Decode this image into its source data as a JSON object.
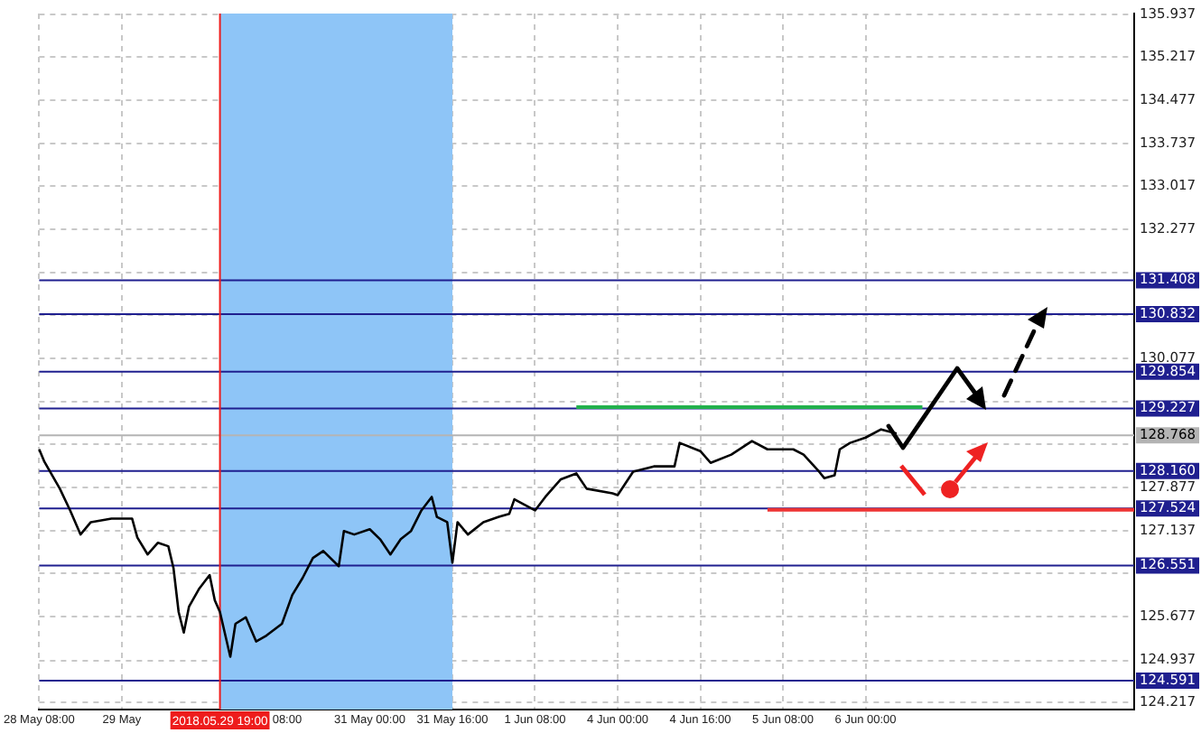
{
  "chart_data": {
    "type": "line",
    "categories": [
      "28 May 08:00",
      null,
      null,
      null,
      null,
      null,
      null,
      null,
      null,
      null,
      null,
      null,
      null,
      null,
      null,
      null,
      "29 May",
      null,
      null,
      null,
      null,
      null,
      null,
      null,
      null,
      null,
      null,
      null,
      null,
      null,
      null,
      null,
      null,
      null,
      null,
      "2018.05.29 19:00",
      null,
      null,
      null,
      null,
      null,
      null,
      null,
      null,
      null,
      null,
      null,
      null,
      "08:00",
      null,
      null,
      null,
      null,
      null,
      null,
      null,
      null,
      null,
      null,
      null,
      null,
      null,
      null,
      null,
      "31 May 00:00",
      null,
      null,
      null,
      null,
      null,
      null,
      null,
      null,
      null,
      null,
      null,
      null,
      null,
      null,
      null,
      "31 May 16:00",
      null,
      null,
      null,
      null,
      null,
      null,
      null,
      null,
      null,
      null,
      null,
      null,
      null,
      null,
      null,
      "1 Jun 08:00",
      null,
      null,
      null,
      null,
      null,
      null,
      null,
      null,
      null,
      null,
      null,
      null,
      null,
      null,
      null,
      "4 Jun 00:00",
      null,
      null,
      null,
      null,
      null,
      null,
      null,
      null,
      null,
      null,
      null,
      null,
      null,
      null,
      null,
      "4 Jun 16:00",
      null,
      null,
      null,
      null,
      null,
      null,
      null,
      null,
      null,
      null,
      null,
      null,
      null,
      null,
      null,
      "5 Jun 08:00",
      null,
      null,
      null,
      null,
      null,
      null,
      null,
      null,
      null,
      null,
      null,
      null,
      null,
      null,
      null,
      "6 Jun 00:00",
      null,
      null,
      null,
      null,
      null,
      null,
      null,
      null,
      null,
      null,
      null,
      null,
      null,
      null,
      null,
      null,
      null,
      null,
      null,
      null,
      null,
      null,
      null,
      null,
      null,
      null,
      null,
      null,
      null,
      null,
      null,
      null,
      null,
      null,
      null,
      null,
      null,
      null,
      null,
      null,
      null,
      null,
      null,
      null,
      null,
      null,
      null,
      null,
      null,
      null,
      null,
      null
    ],
    "ylim": [
      124.1,
      135.95
    ],
    "yticks": [
      124.217,
      124.937,
      125.677,
      {
        "value": 126.417,
        "label": null
      },
      127.137,
      127.877,
      {
        "value": 128.617,
        "label": null
      },
      {
        "value": 129.337,
        "label": null
      },
      130.077,
      {
        "value": 130.817,
        "label": null
      },
      {
        "value": 131.537,
        "label": null
      },
      132.277,
      133.017,
      133.737,
      134.477,
      135.217,
      135.937
    ],
    "grid": true,
    "legend": false,
    "marker": "none",
    "series": [
      {
        "color": "#000000",
        "values": [
          128.53,
          128.32,
          null,
          null,
          127.86,
          null,
          127.49,
          null,
          127.08,
          null,
          127.29,
          null,
          null,
          null,
          127.35,
          null,
          null,
          null,
          127.35,
          127.03,
          null,
          126.74,
          null,
          126.94,
          null,
          126.88,
          126.51,
          125.76,
          125.41,
          125.85,
          null,
          126.16,
          null,
          126.39,
          125.96,
          125.76,
          null,
          125.0,
          125.56,
          null,
          125.67,
          null,
          125.26,
          null,
          125.36,
          null,
          null,
          125.56,
          null,
          126.05,
          null,
          126.34,
          null,
          126.68,
          null,
          126.8,
          null,
          null,
          126.54,
          127.14,
          null,
          127.08,
          null,
          null,
          127.17,
          null,
          127.0,
          null,
          126.74,
          null,
          127.0,
          null,
          127.14,
          null,
          127.49,
          null,
          127.72,
          127.38,
          null,
          127.29,
          126.6,
          127.29,
          null,
          127.08,
          null,
          null,
          127.29,
          null,
          null,
          127.38,
          null,
          127.43,
          127.68,
          null,
          null,
          null,
          127.49,
          null,
          127.72,
          null,
          null,
          128.02,
          null,
          null,
          128.12,
          null,
          127.86,
          null,
          null,
          null,
          null,
          127.78,
          127.75,
          null,
          null,
          128.15,
          null,
          null,
          null,
          128.24,
          null,
          null,
          null,
          128.24,
          128.64,
          null,
          null,
          null,
          128.5,
          null,
          128.3,
          null,
          null,
          null,
          128.44,
          null,
          null,
          null,
          128.67,
          null,
          null,
          128.53,
          null,
          null,
          null,
          null,
          128.53,
          null,
          128.44,
          null,
          null,
          128.15,
          128.04,
          null,
          128.09,
          128.53,
          null,
          128.64,
          null,
          null,
          128.73,
          null,
          null,
          128.87,
          null,
          null,
          128.8,
          null,
          null,
          null,
          null,
          null,
          null,
          null,
          null,
          null,
          null,
          null,
          null,
          null,
          null,
          null,
          null,
          null,
          null,
          null,
          null,
          null,
          null,
          null,
          null,
          null,
          null,
          null,
          null,
          null,
          null,
          null,
          null,
          null,
          null,
          null,
          null,
          null,
          null,
          null,
          null,
          null,
          null,
          null,
          null,
          null,
          null
        ]
      },
      {
        "color": "#22b14c",
        "values": [
          null,
          null,
          null,
          null,
          null,
          null,
          null,
          null,
          null,
          null,
          null,
          null,
          null,
          null,
          null,
          null,
          null,
          null,
          null,
          null,
          null,
          null,
          null,
          null,
          null,
          null,
          null,
          null,
          null,
          null,
          null,
          null,
          null,
          null,
          null,
          null,
          null,
          null,
          null,
          null,
          null,
          null,
          null,
          null,
          null,
          null,
          null,
          null,
          null,
          null,
          null,
          null,
          null,
          null,
          null,
          null,
          null,
          null,
          null,
          null,
          null,
          null,
          null,
          null,
          null,
          null,
          null,
          null,
          null,
          null,
          null,
          null,
          null,
          null,
          null,
          null,
          null,
          null,
          null,
          null,
          null,
          null,
          null,
          null,
          null,
          null,
          null,
          null,
          null,
          null,
          null,
          null,
          null,
          null,
          null,
          null,
          null,
          null,
          null,
          null,
          null,
          null,
          null,
          null,
          129.25,
          null,
          null,
          null,
          null,
          null,
          null,
          null,
          null,
          null,
          null,
          null,
          null,
          null,
          null,
          null,
          null,
          null,
          null,
          null,
          null,
          null,
          null,
          null,
          null,
          null,
          null,
          null,
          null,
          null,
          null,
          null,
          null,
          null,
          null,
          null,
          null,
          null,
          null,
          null,
          null,
          null,
          null,
          null,
          null,
          null,
          null,
          null,
          null,
          null,
          null,
          null,
          null,
          null,
          null,
          null,
          null,
          null,
          null,
          null,
          null,
          null,
          null,
          null,
          null,
          null,
          null,
          129.25,
          null,
          null,
          null,
          null,
          null,
          null,
          null,
          null,
          null,
          null,
          null,
          null,
          null,
          null,
          null,
          null,
          null,
          null,
          null,
          null,
          null,
          null,
          null,
          null,
          null,
          null,
          null,
          null,
          null,
          null,
          null,
          null,
          null,
          null,
          null,
          null,
          null,
          null,
          null,
          null,
          null
        ]
      },
      {
        "color": "#ee3333",
        "values": [
          null,
          null,
          null,
          null,
          null,
          null,
          null,
          null,
          null,
          null,
          null,
          null,
          null,
          null,
          null,
          null,
          null,
          null,
          null,
          null,
          null,
          null,
          null,
          null,
          null,
          null,
          null,
          null,
          null,
          null,
          null,
          null,
          null,
          null,
          null,
          null,
          null,
          null,
          null,
          null,
          null,
          null,
          null,
          null,
          null,
          null,
          null,
          null,
          null,
          null,
          null,
          null,
          null,
          null,
          null,
          null,
          null,
          null,
          null,
          null,
          null,
          null,
          null,
          null,
          null,
          null,
          null,
          null,
          null,
          null,
          null,
          null,
          null,
          null,
          null,
          null,
          null,
          null,
          null,
          null,
          null,
          null,
          null,
          null,
          null,
          null,
          null,
          null,
          null,
          null,
          null,
          null,
          null,
          null,
          null,
          null,
          null,
          null,
          null,
          null,
          null,
          null,
          null,
          null,
          null,
          null,
          null,
          null,
          null,
          null,
          null,
          null,
          null,
          null,
          null,
          null,
          null,
          null,
          null,
          null,
          null,
          null,
          null,
          null,
          null,
          null,
          null,
          null,
          null,
          null,
          null,
          null,
          null,
          null,
          null,
          null,
          null,
          null,
          null,
          null,
          null,
          127.5,
          null,
          null,
          null,
          null,
          null,
          null,
          null,
          null,
          null,
          null,
          null,
          null,
          null,
          null,
          null,
          null,
          null,
          null,
          null,
          null,
          null,
          null,
          null,
          null,
          null,
          null,
          null,
          null,
          null,
          null,
          null,
          null,
          null,
          null,
          null,
          null,
          null,
          null,
          null,
          null,
          null,
          null,
          null,
          null,
          null,
          null,
          null,
          null,
          null,
          null,
          null,
          null,
          null,
          null,
          null,
          null,
          null,
          null,
          null,
          null,
          null,
          null,
          null,
          null,
          null,
          null,
          null,
          null,
          null,
          null,
          127.5
        ]
      }
    ],
    "ref_lines": [
      {
        "axis": "y",
        "value": 131.408,
        "label": "131.408",
        "color": "#1f1f8f"
      },
      {
        "axis": "y",
        "value": 130.832,
        "label": "130.832",
        "color": "#1f1f8f"
      },
      {
        "axis": "y",
        "value": 129.854,
        "label": "129.854",
        "color": "#1f1f8f"
      },
      {
        "axis": "y",
        "value": 129.227,
        "label": "129.227",
        "color": "#1f1f8f"
      },
      {
        "axis": "y",
        "value": 128.768,
        "label": "128.768",
        "color": "#b4b4b4"
      },
      {
        "axis": "y",
        "value": 128.16,
        "label": "128.160",
        "color": "#1f1f8f"
      },
      {
        "axis": "y",
        "value": 127.524,
        "label": "127.524",
        "color": "#1f1f8f"
      },
      {
        "axis": "y",
        "value": 126.551,
        "label": "126.551",
        "color": "#1f1f8f"
      },
      {
        "axis": "y",
        "value": 124.591,
        "label": "124.591",
        "color": "#1f1f8f"
      },
      {
        "axis": "x",
        "value": "2018.05.29 19:00",
        "color": "#ee1c1c"
      }
    ],
    "bands": [
      {
        "axis": "x",
        "from": "2018.05.29 19:00",
        "to": "31 May 16:00",
        "color": "#8ec5f7"
      }
    ]
  }
}
